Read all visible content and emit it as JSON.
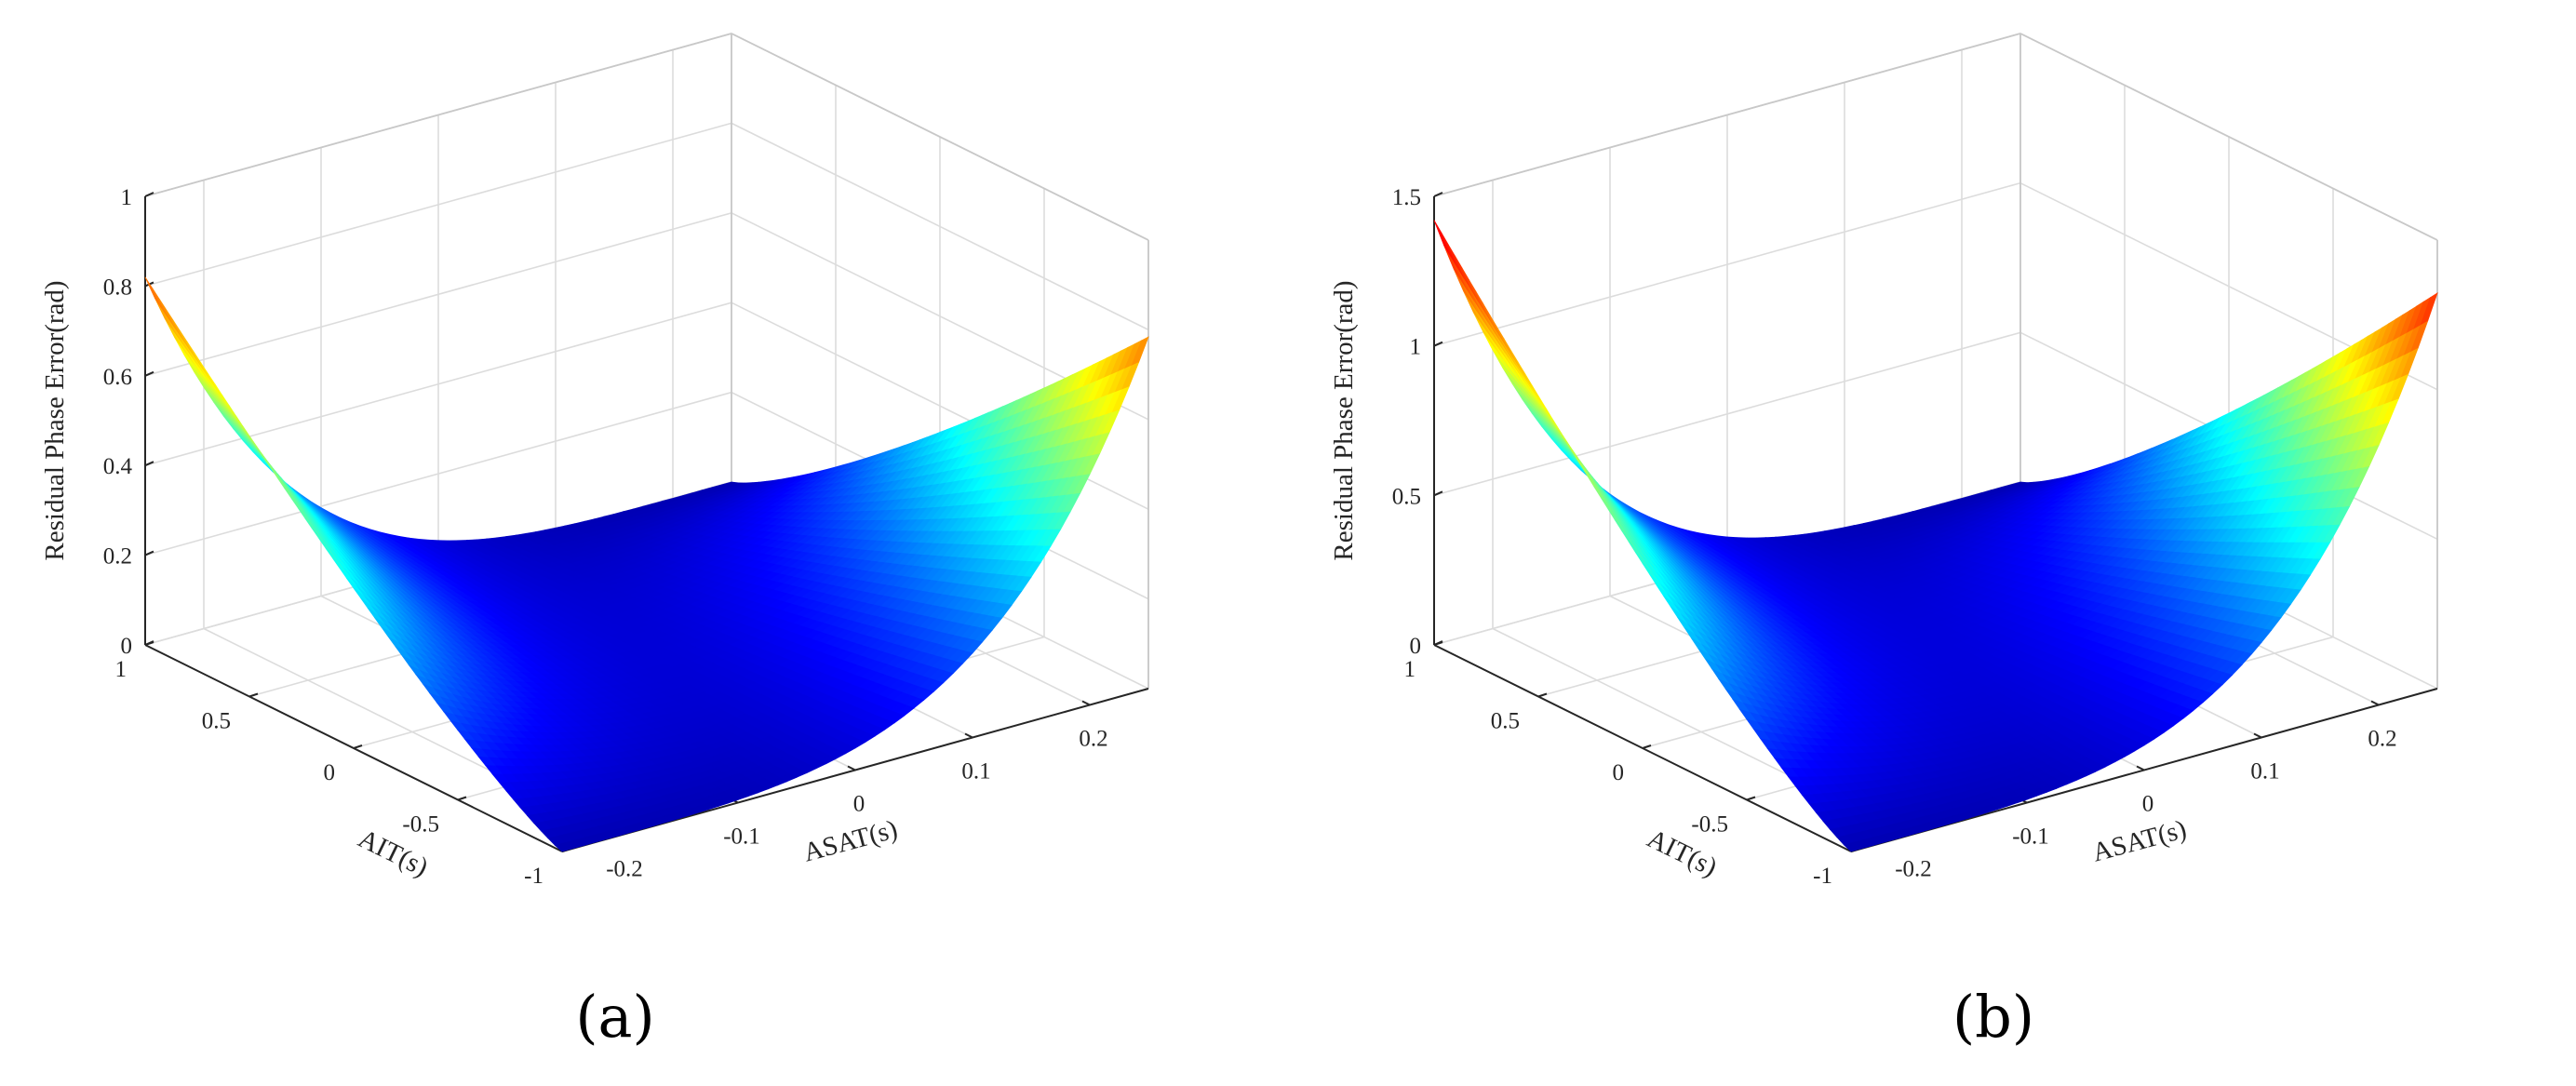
{
  "chart_data": [
    {
      "type": "surface",
      "panel_label": "(a)",
      "xlabel": "ASAT(s)",
      "ylabel": "AIT(s)",
      "zlabel": "Residual Phase Error(rad)",
      "xlim": [
        -0.25,
        0.25
      ],
      "ylim": [
        -1,
        1
      ],
      "zlim": [
        0,
        1
      ],
      "x_ticks": [
        -0.2,
        -0.1,
        0,
        0.1,
        0.2
      ],
      "x_tick_labels": [
        "-0.2",
        "-0.1",
        "0",
        "0.1",
        "0.2"
      ],
      "y_ticks": [
        -1,
        -0.5,
        0,
        0.5,
        1
      ],
      "y_tick_labels": [
        "-1",
        "-0.5",
        "0",
        "0.5",
        "1"
      ],
      "z_ticks": [
        0,
        0.2,
        0.4,
        0.6,
        0.8,
        1
      ],
      "z_tick_labels": [
        "0",
        "0.2",
        "0.4",
        "0.6",
        "0.8",
        "1"
      ],
      "grid": true,
      "colormap": "jet",
      "colormap_stops": [
        "#00008f",
        "#0000ff",
        "#00ffff",
        "#ffff00",
        "#ff0000",
        "#800000"
      ],
      "corner_values": {
        "asat_0.25_ait_1": 0.82,
        "asat_-0.25_ait_-1": 0.8,
        "center": 0.0
      }
    },
    {
      "type": "surface",
      "panel_label": "(b)",
      "xlabel": "ASAT(s)",
      "ylabel": "AIT(s)",
      "zlabel": "Residual Phase Error(rad)",
      "xlim": [
        -0.25,
        0.25
      ],
      "ylim": [
        -1,
        1
      ],
      "zlim": [
        0,
        1.5
      ],
      "x_ticks": [
        -0.2,
        -0.1,
        0,
        0.1,
        0.2
      ],
      "x_tick_labels": [
        "-0.2",
        "-0.1",
        "0",
        "0.1",
        "0.2"
      ],
      "y_ticks": [
        -1,
        -0.5,
        0,
        0.5,
        1
      ],
      "y_tick_labels": [
        "-1",
        "-0.5",
        "0",
        "0.5",
        "1"
      ],
      "z_ticks": [
        0,
        0.5,
        1,
        1.5
      ],
      "z_tick_labels": [
        "0",
        "0.5",
        "1",
        "1.5"
      ],
      "grid": true,
      "colormap": "jet",
      "colormap_stops": [
        "#00008f",
        "#0000ff",
        "#00ffff",
        "#ffff00",
        "#ff0000",
        "#800000"
      ],
      "corner_values": {
        "asat_0.25_ait_1": 1.42,
        "asat_-0.25_ait_-1": 1.35,
        "center": 0.0
      }
    }
  ]
}
